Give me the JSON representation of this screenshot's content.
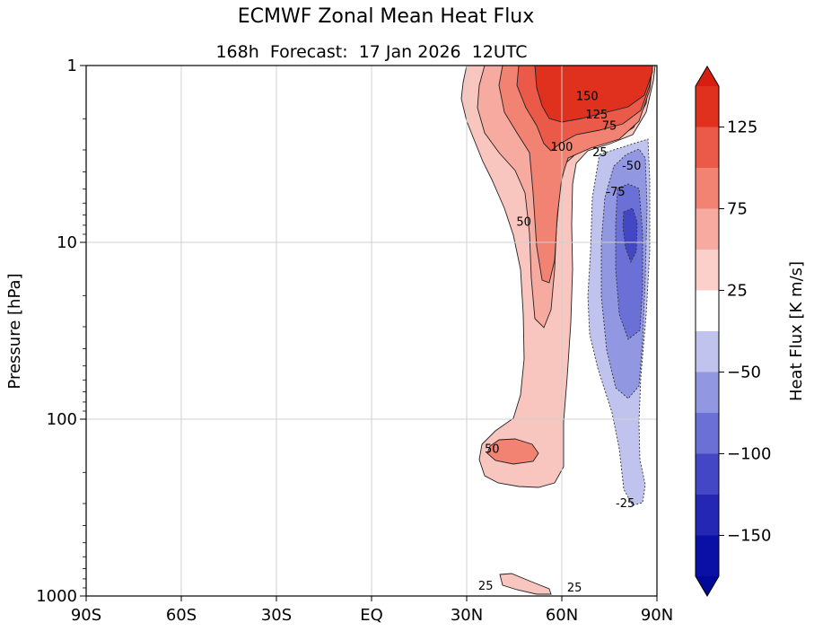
{
  "chart_data": {
    "type": "contour",
    "title": "ECMWF Zonal Mean Heat Flux",
    "subtitle": "168h  Forecast:  17 Jan 2026  12UTC",
    "xlabel": "",
    "ylabel": "Pressure [hPa]",
    "x_ticks": [
      "90S",
      "60S",
      "30S",
      "EQ",
      "30N",
      "60N",
      "90N"
    ],
    "x_tick_values": [
      -90,
      -60,
      -30,
      0,
      30,
      60,
      90
    ],
    "xlim": [
      -90,
      90
    ],
    "y_ticks": [
      "1",
      "10",
      "100",
      "1000"
    ],
    "y_tick_values": [
      1,
      10,
      100,
      1000
    ],
    "ylim": [
      1000,
      1
    ],
    "yscale": "log",
    "grid": true,
    "colorbar": {
      "label": "Heat Flux [K  m/s]",
      "tick_labels": [
        "125",
        "75",
        "25",
        "−50",
        "−100",
        "−150"
      ],
      "levels": [
        150,
        125,
        100,
        75,
        50,
        25,
        -25,
        -50,
        -75,
        -100,
        -125,
        -150
      ],
      "colors": [
        "#e0301e",
        "#eb5a48",
        "#f28272",
        "#f7aaa0",
        "#fbd0ca",
        "#ffffff",
        "#bfc3ed",
        "#9197e0",
        "#6a70d6",
        "#4347c6",
        "#2327b4",
        "#0a0fa5"
      ],
      "extend": "both"
    },
    "contour_labels": [
      {
        "text": "150",
        "lat": 68,
        "p": 1.5
      },
      {
        "text": "125",
        "lat": 71,
        "p": 1.9
      },
      {
        "text": "75",
        "lat": 75,
        "p": 2.2
      },
      {
        "text": "100",
        "lat": 60,
        "p": 2.9
      },
      {
        "text": "25",
        "lat": 72,
        "p": 3.1
      },
      {
        "text": "-50",
        "lat": 82,
        "p": 3.7
      },
      {
        "text": "-75",
        "lat": 77,
        "p": 5.2
      },
      {
        "text": "50",
        "lat": 48,
        "p": 7.7
      },
      {
        "text": "50",
        "lat": 38,
        "p": 148
      },
      {
        "text": "-25",
        "lat": 80,
        "p": 300
      },
      {
        "text": "25",
        "lat": 36,
        "p": 880
      },
      {
        "text": "25",
        "lat": 64,
        "p": 900
      }
    ]
  }
}
